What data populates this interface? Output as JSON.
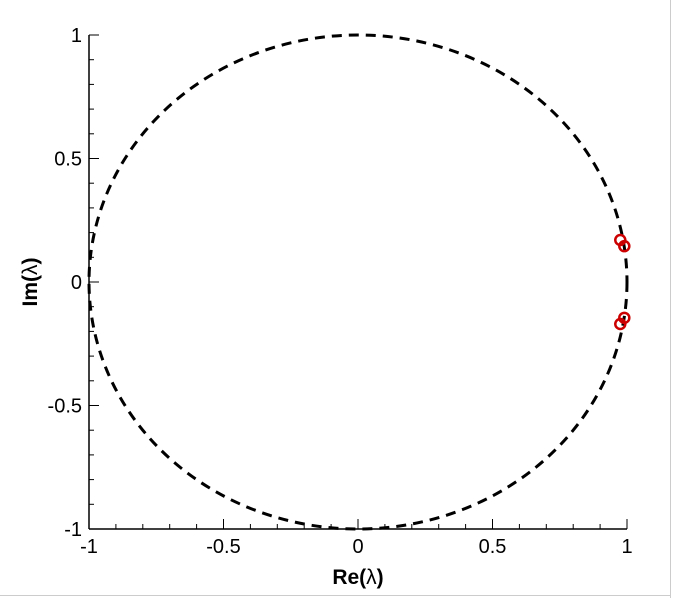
{
  "chart_data": {
    "type": "scatter",
    "xlabel_prefix": "Re(",
    "xlabel_symbol": "λ",
    "xlabel_suffix": ")",
    "ylabel_prefix": "Im(",
    "ylabel_symbol": "λ",
    "ylabel_suffix": ")",
    "xlim": [
      -1,
      1
    ],
    "ylim": [
      -1,
      1
    ],
    "xticks": [
      -1,
      -0.5,
      0,
      0.5,
      1
    ],
    "xtick_labels": [
      "-1",
      "-0.5",
      "0",
      "0.5",
      "1"
    ],
    "yticks": [
      -1,
      -0.5,
      0,
      0.5,
      1
    ],
    "ytick_labels": [
      "-1",
      "-0.5",
      "0",
      "0.5",
      "1"
    ],
    "grid": false,
    "reference_curve": {
      "shape": "unit-circle",
      "style": "dashed",
      "color": "#000000"
    },
    "series": [
      {
        "marker": "circle-open",
        "color": "#cc0000",
        "points": [
          {
            "x": 0.975,
            "y": 0.17
          },
          {
            "x": 0.99,
            "y": 0.145
          },
          {
            "x": 0.975,
            "y": -0.17
          },
          {
            "x": 0.99,
            "y": -0.145
          }
        ]
      }
    ]
  }
}
